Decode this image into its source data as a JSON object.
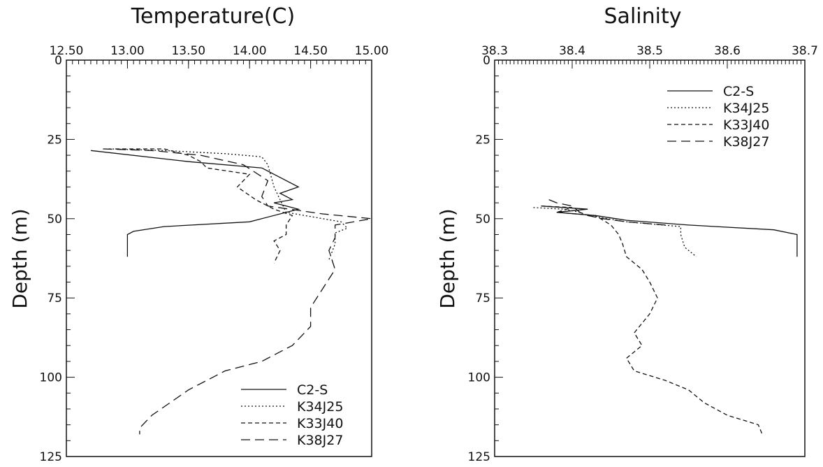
{
  "chart_data": [
    {
      "type": "line",
      "title": "Temperature(C)",
      "ylabel": "Depth (m)",
      "xlabel": "",
      "x_axis_position": "top",
      "y_inverted": true,
      "xlim": [
        12.5,
        15.0
      ],
      "ylim": [
        0,
        125
      ],
      "x_ticks": [
        "12.50",
        "13.00",
        "13.50",
        "14.00",
        "14.50",
        "15.00"
      ],
      "y_ticks": [
        "0",
        "25",
        "50",
        "75",
        "100",
        "125"
      ],
      "legend_position": "bottom-right",
      "series": [
        {
          "name": "C2-S",
          "style": "solid",
          "points": [
            [
              12.7,
              28.5
            ],
            [
              13.5,
              32
            ],
            [
              14.1,
              34
            ],
            [
              14.25,
              37
            ],
            [
              14.4,
              40
            ],
            [
              14.25,
              42
            ],
            [
              14.35,
              44
            ],
            [
              14.2,
              45
            ],
            [
              14.4,
              47
            ],
            [
              14.3,
              48
            ],
            [
              14.0,
              51
            ],
            [
              13.3,
              52.5
            ],
            [
              13.05,
              54
            ],
            [
              13.0,
              55
            ],
            [
              13.0,
              58
            ],
            [
              13.0,
              62
            ]
          ]
        },
        {
          "name": "K34J25",
          "style": "dotted",
          "points": [
            [
              12.85,
              28
            ],
            [
              13.3,
              28.5
            ],
            [
              13.8,
              29.5
            ],
            [
              14.1,
              30.5
            ],
            [
              14.15,
              33
            ],
            [
              14.2,
              40
            ],
            [
              14.25,
              44
            ],
            [
              14.3,
              48
            ],
            [
              14.6,
              50
            ],
            [
              14.75,
              51
            ],
            [
              14.8,
              53
            ],
            [
              14.7,
              54.5
            ],
            [
              14.7,
              58
            ],
            [
              14.65,
              63
            ]
          ]
        },
        {
          "name": "K33J40",
          "style": "short-dash",
          "points": [
            [
              12.9,
              28
            ],
            [
              13.3,
              28
            ],
            [
              13.5,
              30
            ],
            [
              13.6,
              32
            ],
            [
              13.65,
              34
            ],
            [
              14.0,
              36
            ],
            [
              13.9,
              40
            ],
            [
              14.05,
              44
            ],
            [
              14.2,
              47
            ],
            [
              14.35,
              49
            ],
            [
              14.3,
              52
            ],
            [
              14.3,
              55
            ],
            [
              14.2,
              57
            ],
            [
              14.25,
              60
            ],
            [
              14.2,
              64
            ]
          ]
        },
        {
          "name": "K38J27",
          "style": "long-dash",
          "points": [
            [
              12.8,
              28
            ],
            [
              13.2,
              28.5
            ],
            [
              13.6,
              30
            ],
            [
              13.95,
              33
            ],
            [
              14.15,
              38
            ],
            [
              14.1,
              43
            ],
            [
              14.15,
              46
            ],
            [
              14.6,
              48.5
            ],
            [
              15.0,
              50
            ],
            [
              14.7,
              52
            ],
            [
              14.7,
              56
            ],
            [
              14.65,
              60
            ],
            [
              14.7,
              66
            ],
            [
              14.6,
              72
            ],
            [
              14.5,
              78
            ],
            [
              14.5,
              84
            ],
            [
              14.35,
              90
            ],
            [
              14.1,
              95
            ],
            [
              13.8,
              98
            ],
            [
              13.5,
              104
            ],
            [
              13.35,
              108
            ],
            [
              13.2,
              112
            ],
            [
              13.1,
              116
            ],
            [
              13.1,
              118
            ]
          ]
        }
      ]
    },
    {
      "type": "line",
      "title": "Salinity",
      "ylabel": "Depth (m)",
      "xlabel": "",
      "x_axis_position": "top",
      "y_inverted": true,
      "xlim": [
        38.3,
        38.7
      ],
      "ylim": [
        0,
        125
      ],
      "x_ticks": [
        "38.3",
        "38.4",
        "38.5",
        "38.6",
        "38.7"
      ],
      "y_ticks": [
        "0",
        "25",
        "50",
        "75",
        "100",
        "125"
      ],
      "legend_position": "top-right",
      "series": [
        {
          "name": "C2-S",
          "style": "solid",
          "points": [
            [
              38.36,
              46
            ],
            [
              38.42,
              47
            ],
            [
              38.38,
              48
            ],
            [
              38.43,
              49
            ],
            [
              38.47,
              50.5
            ],
            [
              38.55,
              52
            ],
            [
              38.66,
              53.5
            ],
            [
              38.69,
              55
            ],
            [
              38.69,
              58
            ],
            [
              38.69,
              62
            ]
          ]
        },
        {
          "name": "K34J25",
          "style": "dotted",
          "points": [
            [
              38.35,
              46.5
            ],
            [
              38.39,
              47
            ],
            [
              38.41,
              48
            ],
            [
              38.42,
              49
            ],
            [
              38.47,
              51
            ],
            [
              38.54,
              52.5
            ],
            [
              38.54,
              55
            ],
            [
              38.545,
              59
            ],
            [
              38.56,
              62
            ]
          ]
        },
        {
          "name": "K33J40",
          "style": "short-dash",
          "points": [
            [
              38.36,
              46
            ],
            [
              38.4,
              46.5
            ],
            [
              38.38,
              48
            ],
            [
              38.43,
              49
            ],
            [
              38.45,
              52
            ],
            [
              38.46,
              55
            ],
            [
              38.465,
              58
            ],
            [
              38.47,
              62
            ],
            [
              38.49,
              66
            ],
            [
              38.5,
              70
            ],
            [
              38.51,
              75
            ],
            [
              38.5,
              80
            ],
            [
              38.48,
              86
            ],
            [
              38.49,
              90
            ],
            [
              38.47,
              94
            ],
            [
              38.48,
              98
            ],
            [
              38.52,
              101
            ],
            [
              38.55,
              104
            ],
            [
              38.57,
              108
            ],
            [
              38.6,
              112
            ],
            [
              38.64,
              115
            ],
            [
              38.645,
              118
            ]
          ]
        },
        {
          "name": "K38J27",
          "style": "long-dash",
          "points": [
            [
              38.37,
              44
            ],
            [
              38.38,
              45
            ],
            [
              38.4,
              46
            ],
            [
              38.41,
              48
            ],
            [
              38.42,
              49
            ],
            [
              38.44,
              50
            ],
            [
              38.47,
              51
            ],
            [
              38.52,
              52
            ]
          ]
        }
      ]
    }
  ]
}
